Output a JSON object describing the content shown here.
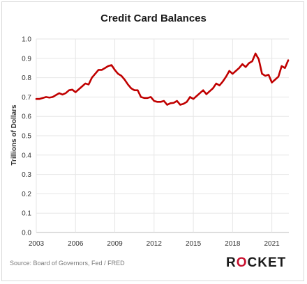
{
  "chart_data": {
    "type": "line",
    "title": "Credit Card Balances",
    "xlabel": "",
    "ylabel": "Trillions of Dollars",
    "xlim": [
      2003,
      2022.3
    ],
    "ylim": [
      0,
      1.0
    ],
    "x_ticks": [
      2003,
      2006,
      2009,
      2012,
      2015,
      2018,
      2021
    ],
    "x_tick_labels": [
      "2003",
      "2006",
      "2009",
      "2012",
      "2015",
      "2018",
      "2021"
    ],
    "y_ticks": [
      0,
      0.1,
      0.2,
      0.3,
      0.4,
      0.5,
      0.6,
      0.7,
      0.8,
      0.9,
      1.0
    ],
    "y_tick_labels": [
      "0.0",
      "0.1",
      "0.2",
      "0.3",
      "0.4",
      "0.5",
      "0.6",
      "0.7",
      "0.8",
      "0.9",
      "1.0"
    ],
    "grid": true,
    "series": [
      {
        "name": "",
        "color": "#c00000",
        "x": [
          2003.0,
          2003.25,
          2003.5,
          2003.75,
          2004.0,
          2004.25,
          2004.5,
          2004.75,
          2005.0,
          2005.25,
          2005.5,
          2005.75,
          2006.0,
          2006.25,
          2006.5,
          2006.75,
          2007.0,
          2007.25,
          2007.5,
          2007.75,
          2008.0,
          2008.25,
          2008.5,
          2008.75,
          2009.0,
          2009.25,
          2009.5,
          2009.75,
          2010.0,
          2010.25,
          2010.5,
          2010.75,
          2011.0,
          2011.25,
          2011.5,
          2011.75,
          2012.0,
          2012.25,
          2012.5,
          2012.75,
          2013.0,
          2013.25,
          2013.5,
          2013.75,
          2014.0,
          2014.25,
          2014.5,
          2014.75,
          2015.0,
          2015.25,
          2015.5,
          2015.75,
          2016.0,
          2016.25,
          2016.5,
          2016.75,
          2017.0,
          2017.25,
          2017.5,
          2017.75,
          2018.0,
          2018.25,
          2018.5,
          2018.75,
          2019.0,
          2019.25,
          2019.5,
          2019.75,
          2020.0,
          2020.25,
          2020.5,
          2020.75,
          2021.0,
          2021.25,
          2021.5,
          2021.75,
          2022.0,
          2022.25
        ],
        "values": [
          0.69,
          0.69,
          0.695,
          0.7,
          0.697,
          0.7,
          0.71,
          0.72,
          0.713,
          0.72,
          0.735,
          0.738,
          0.725,
          0.74,
          0.755,
          0.77,
          0.765,
          0.8,
          0.82,
          0.84,
          0.84,
          0.85,
          0.86,
          0.865,
          0.84,
          0.82,
          0.81,
          0.79,
          0.765,
          0.745,
          0.735,
          0.735,
          0.7,
          0.695,
          0.695,
          0.7,
          0.68,
          0.675,
          0.675,
          0.68,
          0.66,
          0.668,
          0.67,
          0.68,
          0.66,
          0.665,
          0.675,
          0.7,
          0.69,
          0.705,
          0.72,
          0.735,
          0.715,
          0.73,
          0.745,
          0.77,
          0.76,
          0.78,
          0.805,
          0.835,
          0.82,
          0.835,
          0.85,
          0.87,
          0.855,
          0.875,
          0.885,
          0.925,
          0.895,
          0.82,
          0.81,
          0.815,
          0.775,
          0.79,
          0.805,
          0.86,
          0.85,
          0.89
        ]
      }
    ]
  },
  "footer": {
    "source": "Source: Board of Governors, Fed / FRED",
    "logo_left": "R",
    "logo_o": "O",
    "logo_right": "CKET"
  }
}
